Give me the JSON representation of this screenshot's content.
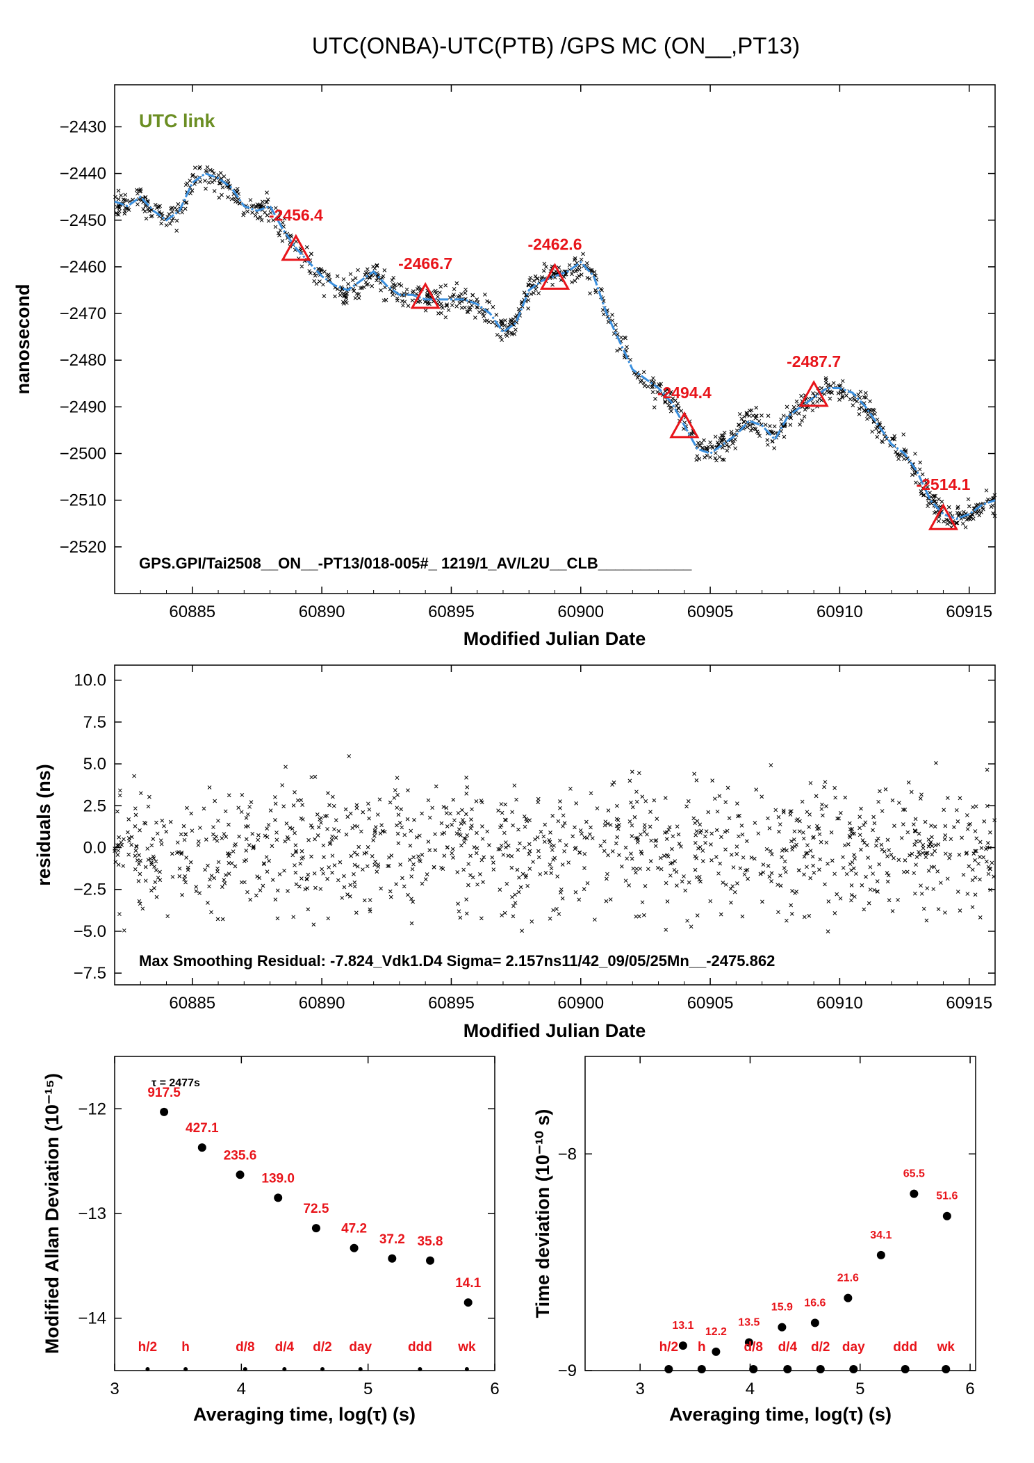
{
  "title": "UTC(ONBA)-UTC(PTB)  /GPS  MC  (ON__,PT13)",
  "colors": {
    "smooth_line": "#3a8fde",
    "marker_red": "#e8141a",
    "link_label": "#6b8e23",
    "points": "#000000"
  },
  "chart_data": [
    {
      "id": "top",
      "type": "scatter",
      "xlabel": "Modified Julian Date",
      "ylabel": "nanosecond",
      "xlim": [
        60882,
        60916
      ],
      "ylim": [
        -2530,
        -2421
      ],
      "xticks": [
        60885,
        60890,
        60895,
        60900,
        60905,
        60910,
        60915
      ],
      "yticks": [
        -2430,
        -2440,
        -2450,
        -2460,
        -2470,
        -2480,
        -2490,
        -2500,
        -2510,
        -2520
      ],
      "grid": false,
      "legend_text": "UTC link",
      "footer_text": "GPS.GPI/Tai2508__ON__-PT13/018-005#_  1219/1_AV/L2U__CLB___________",
      "smooth_series": {
        "x": [
          60882,
          60882.5,
          60883,
          60883.5,
          60884,
          60884.5,
          60885,
          60885.5,
          60886,
          60886.5,
          60887,
          60887.5,
          60888,
          60888.5,
          60889,
          60889.5,
          60890,
          60890.5,
          60891,
          60891.5,
          60892,
          60892.5,
          60893,
          60893.5,
          60894,
          60894.5,
          60895,
          60895.5,
          60896,
          60896.5,
          60897,
          60897.5,
          60898,
          60898.5,
          60899,
          60899.5,
          60900,
          60900.5,
          60901,
          60901.5,
          60902,
          60902.5,
          60903,
          60903.5,
          60904,
          60904.5,
          60905,
          60905.5,
          60906,
          60906.5,
          60907,
          60907.5,
          60908,
          60908.5,
          60909,
          60909.5,
          60910,
          60910.5,
          60911,
          60911.5,
          60912,
          60912.5,
          60913,
          60913.5,
          60914,
          60914.5,
          60915,
          60915.5,
          60916
        ],
        "y": [
          -2446,
          -2447,
          -2445,
          -2448,
          -2450,
          -2448,
          -2442,
          -2440,
          -2441,
          -2443,
          -2447,
          -2448,
          -2447,
          -2452,
          -2456,
          -2459,
          -2462,
          -2464,
          -2465,
          -2463,
          -2461,
          -2464,
          -2466,
          -2466,
          -2467,
          -2467,
          -2467,
          -2467,
          -2468,
          -2470,
          -2474,
          -2472,
          -2465,
          -2463,
          -2462,
          -2461,
          -2459,
          -2462,
          -2470,
          -2476,
          -2482,
          -2484,
          -2486,
          -2489,
          -2494,
          -2499,
          -2500,
          -2498,
          -2496,
          -2493,
          -2494,
          -2497,
          -2492,
          -2490,
          -2488,
          -2486,
          -2486,
          -2487,
          -2490,
          -2494,
          -2498,
          -2500,
          -2504,
          -2510,
          -2513,
          -2514,
          -2513,
          -2511,
          -2510
        ]
      },
      "markers": [
        {
          "x": 60889,
          "y": -2456.4,
          "label": "-2456.4"
        },
        {
          "x": 60894,
          "y": -2466.7,
          "label": "-2466.7"
        },
        {
          "x": 60899,
          "y": -2462.6,
          "label": "-2462.6"
        },
        {
          "x": 60904,
          "y": -2494.4,
          "label": "-2494.4"
        },
        {
          "x": 60909,
          "y": -2487.7,
          "label": "-2487.7"
        },
        {
          "x": 60914,
          "y": -2514.1,
          "label": "-2514.1"
        }
      ],
      "scatter_note": "about 1200 raw measurement points scattered ±3 ns around the smooth series"
    },
    {
      "id": "residuals",
      "type": "scatter",
      "xlabel": "Modified Julian Date",
      "ylabel": "residuals (ns)",
      "xlim": [
        60882,
        60916
      ],
      "ylim": [
        -8.2,
        10.9
      ],
      "xticks": [
        60885,
        60890,
        60895,
        60900,
        60905,
        60910,
        60915
      ],
      "yticks": [
        "10.0",
        "7.5",
        "5.0",
        "2.5",
        "0.0",
        "−2.5",
        "−5.0",
        "−7.5"
      ],
      "ytick_values": [
        10,
        7.5,
        5,
        2.5,
        0,
        -2.5,
        -5,
        -7.5
      ],
      "sigma_ns": 2.157,
      "footer_text": "Max Smoothing Residual: -7.824_Vdk1.D4  Sigma= 2.157ns11/42_09/05/25Mn__-2475.862"
    },
    {
      "id": "mdev",
      "type": "scatter",
      "xlabel": "Averaging time, log(τ) (s)",
      "ylabel": "Modified Allan Deviation (10⁻¹⁵)",
      "xlim": [
        3,
        6
      ],
      "ylim": [
        -14.5,
        -11.5
      ],
      "xticks": [
        "3",
        "4",
        "5",
        "6"
      ],
      "xtick_values": [
        3,
        4,
        5,
        6
      ],
      "yticks": [
        "−12",
        "−13",
        "−14"
      ],
      "ytick_values": [
        -12,
        -13,
        -14
      ],
      "tau_note": "τ = 2477s",
      "points": [
        {
          "x": 3.39,
          "y": -12.03,
          "label": "917.5"
        },
        {
          "x": 3.69,
          "y": -12.37,
          "label": "427.1"
        },
        {
          "x": 3.99,
          "y": -12.63,
          "label": "235.6"
        },
        {
          "x": 4.29,
          "y": -12.85,
          "label": "139.0"
        },
        {
          "x": 4.59,
          "y": -13.14,
          "label": "72.5"
        },
        {
          "x": 4.89,
          "y": -13.33,
          "label": "47.2"
        },
        {
          "x": 5.19,
          "y": -13.43,
          "label": "37.2"
        },
        {
          "x": 5.49,
          "y": -13.45,
          "label": "35.8"
        },
        {
          "x": 5.79,
          "y": -13.85,
          "label": "14.1"
        }
      ],
      "bottom_markers": [
        {
          "x": 3.26,
          "label": "h/2"
        },
        {
          "x": 3.56,
          "label": "h"
        },
        {
          "x": 4.03,
          "label": "d/8"
        },
        {
          "x": 4.34,
          "label": "d/4"
        },
        {
          "x": 4.64,
          "label": "d/2"
        },
        {
          "x": 4.94,
          "label": "day"
        },
        {
          "x": 5.41,
          "label": "ddd"
        },
        {
          "x": 5.78,
          "label": "wk"
        }
      ]
    },
    {
      "id": "tdev",
      "type": "scatter",
      "xlabel": "Averaging time, log(τ) (s)",
      "ylabel": "Time deviation (10⁻¹⁰ s)",
      "xlim": [
        2.5,
        6.05
      ],
      "ylim": [
        -9.0,
        -7.55
      ],
      "xticks": [
        "3",
        "4",
        "5",
        "6"
      ],
      "xtick_values": [
        3,
        4,
        5,
        6
      ],
      "yticks": [
        "−8",
        "−9"
      ],
      "ytick_values": [
        -8,
        -9
      ],
      "points": [
        {
          "x": 3.39,
          "y": -8.885,
          "label": "13.1"
        },
        {
          "x": 3.69,
          "y": -8.913,
          "label": "12.2"
        },
        {
          "x": 3.99,
          "y": -8.87,
          "label": "13.5"
        },
        {
          "x": 4.29,
          "y": -8.8,
          "label": "15.9"
        },
        {
          "x": 4.59,
          "y": -8.78,
          "label": "16.6"
        },
        {
          "x": 4.89,
          "y": -8.665,
          "label": "21.6"
        },
        {
          "x": 5.19,
          "y": -8.467,
          "label": "34.1"
        },
        {
          "x": 5.49,
          "y": -8.184,
          "label": "65.5"
        },
        {
          "x": 5.79,
          "y": -8.287,
          "label": "51.6"
        }
      ],
      "bottom_markers": [
        {
          "x": 3.26,
          "label": "h/2"
        },
        {
          "x": 3.56,
          "label": "h"
        },
        {
          "x": 4.03,
          "label": "d/8"
        },
        {
          "x": 4.34,
          "label": "d/4"
        },
        {
          "x": 4.64,
          "label": "d/2"
        },
        {
          "x": 4.94,
          "label": "day"
        },
        {
          "x": 5.41,
          "label": "ddd"
        },
        {
          "x": 5.78,
          "label": "wk"
        }
      ]
    }
  ]
}
